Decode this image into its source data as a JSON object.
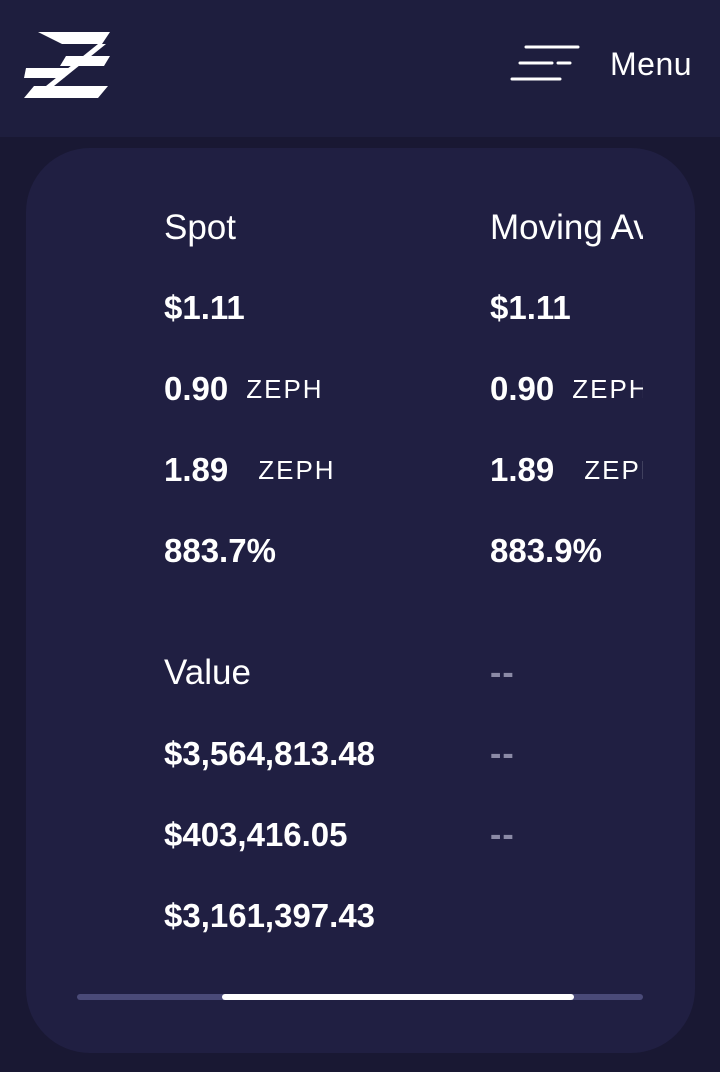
{
  "header": {
    "menu_label": "Menu",
    "logo_icon": "zephyr-logo-icon",
    "menu_icon": "hamburger-menu-icon"
  },
  "columns": [
    {
      "heading": "Spot",
      "price": "$1.11",
      "ratio_1": {
        "value": "0.90",
        "unit": "ZEPH"
      },
      "ratio_2": {
        "value": "1.89",
        "unit": "ZEPH"
      },
      "percent": "883.7%",
      "value_heading": "Value",
      "value_1": "$3,564,813.48",
      "value_2": "$403,416.05",
      "value_3": "$3,161,397.43"
    },
    {
      "heading": "Moving Av",
      "price": "$1.11",
      "ratio_1": {
        "value": "0.90",
        "unit": "ZEPH"
      },
      "ratio_2": {
        "value": "1.89",
        "unit": "ZEPH"
      },
      "percent": "883.9%",
      "value_heading": "--",
      "value_1": "--",
      "value_2": "--"
    }
  ],
  "colors": {
    "page_background": "#191833",
    "header_background": "#1e1e3e",
    "card_background": "#201f42",
    "muted_text": "#8b8aa6",
    "scroll_track": "#4a4a78",
    "scroll_thumb": "#ffffff"
  },
  "scroll_position": 0.35
}
